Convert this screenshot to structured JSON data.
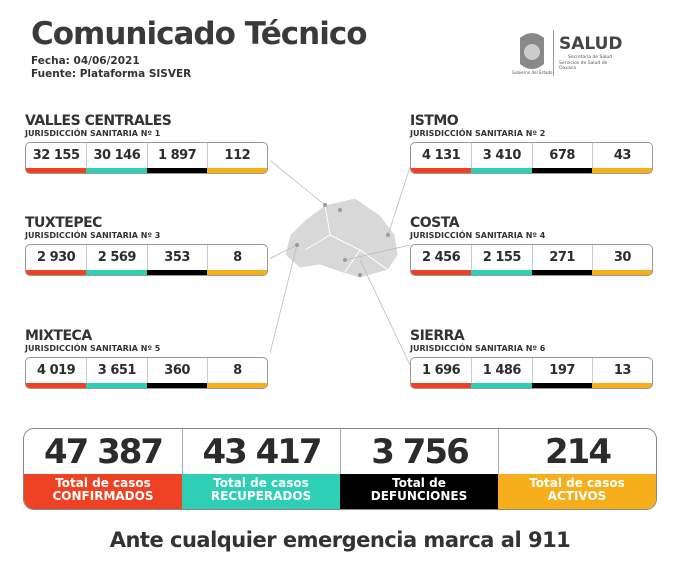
{
  "header": {
    "title": "Comunicado Técnico",
    "fecha": "Fecha: 04/06/2021",
    "fuente": "Fuente: Plataforma SISVER"
  },
  "logo": {
    "brand": "SALUD",
    "line1": "Secretaría de Salud",
    "line2": "Servicios de Salud de Oaxaca",
    "gov": "Gobierno del Estado"
  },
  "colors": {
    "confirmados": "#ef4123",
    "recuperados": "#2ecfb5",
    "defunciones": "#000000",
    "activos": "#f7ae1b"
  },
  "regions": [
    {
      "name": "VALLES CENTRALES",
      "sub": "JURISDICCIÓN SANITARIA Nº 1",
      "values": [
        "32 155",
        "30 146",
        "1 897",
        "112"
      ]
    },
    {
      "name": "ISTMO",
      "sub": "JURISDICCIÓN SANITARIA Nº 2",
      "values": [
        "4 131",
        "3 410",
        "678",
        "43"
      ]
    },
    {
      "name": "TUXTEPEC",
      "sub": "JURISDICCIÓN SANITARIA Nº 3",
      "values": [
        "2 930",
        "2 569",
        "353",
        "8"
      ]
    },
    {
      "name": "COSTA",
      "sub": "JURISDICCIÓN SANITARIA Nº 4",
      "values": [
        "2 456",
        "2 155",
        "271",
        "30"
      ]
    },
    {
      "name": "MIXTECA",
      "sub": "JURISDICCIÓN SANITARIA Nº 5",
      "values": [
        "4 019",
        "3 651",
        "360",
        "8"
      ]
    },
    {
      "name": "SIERRA",
      "sub": "JURISDICCIÓN SANITARIA Nº 6",
      "values": [
        "1 696",
        "1 486",
        "197",
        "13"
      ]
    }
  ],
  "totals": [
    {
      "value": "47 387",
      "l1": "Total de casos",
      "l2": "CONFIRMADOS"
    },
    {
      "value": "43 417",
      "l1": "Total de casos",
      "l2": "RECUPERADOS"
    },
    {
      "value": "3 756",
      "l1": "Total de",
      "l2": "DEFUNCIONES"
    },
    {
      "value": "214",
      "l1": "Total de casos",
      "l2": "ACTIVOS"
    }
  ],
  "footer": "Ante cualquier emergencia marca al 911"
}
